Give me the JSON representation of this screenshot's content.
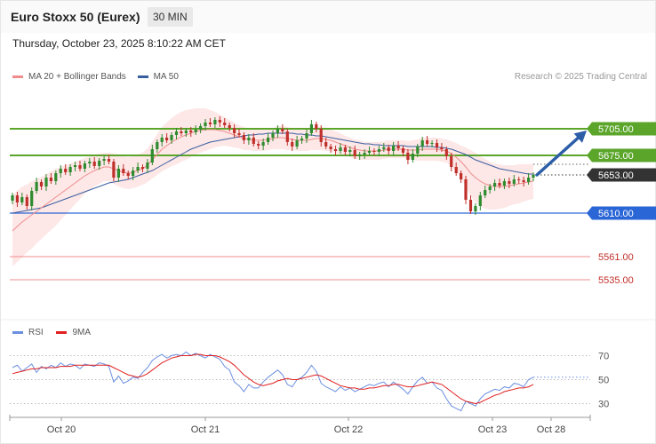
{
  "header": {
    "title": "Euro Stoxx 50 (Eurex)",
    "timeframe": "30 MIN",
    "datetime": "Thursday, October 23, 2025 8:10:22 AM CET"
  },
  "legend": {
    "ma20_label": "MA 20 + Bollinger Bands",
    "ma50_label": "MA 50",
    "copyright": "Research © 2025 Trading Central"
  },
  "rsi_legend": {
    "rsi_label": "RSI",
    "ma9_label": "9MA"
  },
  "colors": {
    "resistance": "#5aa52a",
    "support": "#2a66d6",
    "target_low": "#f08c8c",
    "current": "#333333",
    "ma20": "#f08c8c",
    "ma50": "#3a5fa0",
    "bollinger_fill": "#fde4e4",
    "arrow": "#2c5ea8",
    "candle_up": "#2e8b2e",
    "candle_down": "#c0302b",
    "rsi": "#6b8fe0",
    "rsi_ma": "#e02020"
  },
  "chart_data": [
    {
      "type": "candlestick",
      "ylim": [
        5520,
        5745
      ],
      "x_tick_labels": [
        "Oct 20",
        "Oct 21",
        "Oct 22",
        "Oct 23",
        "Oct 28"
      ],
      "series": [
        {
          "name": "MA 20 + Bollinger Bands"
        },
        {
          "name": "MA 50"
        }
      ],
      "levels": [
        {
          "value": 5705.0,
          "label": "5705.00",
          "kind": "resistance"
        },
        {
          "value": 5675.0,
          "label": "5675.00",
          "kind": "resistance"
        },
        {
          "value": 5653.0,
          "label": "5653.00",
          "kind": "current"
        },
        {
          "value": 5610.0,
          "label": "5610.00",
          "kind": "support"
        },
        {
          "value": 5561.0,
          "label": "5561.00",
          "kind": "target"
        },
        {
          "value": 5535.0,
          "label": "5535.00",
          "kind": "target"
        }
      ],
      "close": [
        5630,
        5622,
        5628,
        5618,
        5635,
        5645,
        5640,
        5650,
        5646,
        5655,
        5660,
        5656,
        5662,
        5664,
        5660,
        5666,
        5668,
        5663,
        5669,
        5671,
        5668,
        5650,
        5660,
        5655,
        5652,
        5658,
        5662,
        5660,
        5667,
        5682,
        5690,
        5695,
        5692,
        5698,
        5702,
        5700,
        5703,
        5701,
        5704,
        5708,
        5712,
        5710,
        5715,
        5712,
        5709,
        5706,
        5700,
        5698,
        5692,
        5695,
        5688,
        5686,
        5690,
        5695,
        5700,
        5705,
        5702,
        5690,
        5685,
        5692,
        5694,
        5700,
        5710,
        5705,
        5690,
        5685,
        5682,
        5680,
        5684,
        5679,
        5681,
        5674,
        5676,
        5678,
        5680,
        5679,
        5682,
        5684,
        5680,
        5686,
        5683,
        5678,
        5670,
        5677,
        5685,
        5692,
        5688,
        5689,
        5684,
        5682,
        5674,
        5662,
        5655,
        5648,
        5625,
        5612,
        5618,
        5630,
        5636,
        5640,
        5644,
        5641,
        5646,
        5643,
        5648,
        5647,
        5645,
        5650,
        5653
      ],
      "ma20": [
        5590,
        5595,
        5600,
        5604,
        5608,
        5612,
        5616,
        5620,
        5624,
        5628,
        5632,
        5636,
        5640,
        5644,
        5648,
        5652,
        5655,
        5658,
        5660,
        5662,
        5662,
        5660,
        5658,
        5656,
        5655,
        5656,
        5658,
        5660,
        5664,
        5670,
        5676,
        5682,
        5686,
        5690,
        5693,
        5696,
        5698,
        5700,
        5702,
        5703,
        5704,
        5704,
        5704,
        5703,
        5702,
        5700,
        5698,
        5696,
        5694,
        5693,
        5692,
        5692,
        5692,
        5693,
        5694,
        5695,
        5695,
        5694,
        5693,
        5692,
        5692,
        5692,
        5693,
        5694,
        5694,
        5693,
        5692,
        5690,
        5688,
        5686,
        5684,
        5682,
        5681,
        5680,
        5680,
        5680,
        5680,
        5681,
        5682,
        5682,
        5682,
        5682,
        5681,
        5681,
        5681,
        5682,
        5682,
        5682,
        5682,
        5681,
        5680,
        5677,
        5673,
        5668,
        5662,
        5655,
        5650,
        5646,
        5643,
        5641,
        5640,
        5640,
        5640,
        5641,
        5642,
        5643,
        5644,
        5645,
        5646
      ],
      "ma50": [
        5610,
        5611,
        5612,
        5613,
        5614,
        5615,
        5616,
        5618,
        5620,
        5622,
        5624,
        5626,
        5628,
        5630,
        5632,
        5634,
        5636,
        5638,
        5640,
        5642,
        5644,
        5645,
        5646,
        5647,
        5648,
        5650,
        5652,
        5654,
        5656,
        5658,
        5661,
        5664,
        5667,
        5670,
        5673,
        5676,
        5679,
        5682,
        5684,
        5686,
        5688,
        5690,
        5691,
        5692,
        5693,
        5694,
        5695,
        5696,
        5697,
        5698,
        5698,
        5699,
        5699,
        5700,
        5700,
        5700,
        5700,
        5700,
        5700,
        5699,
        5699,
        5698,
        5698,
        5697,
        5697,
        5696,
        5695,
        5694,
        5693,
        5692,
        5691,
        5690,
        5689,
        5688,
        5688,
        5687,
        5687,
        5686,
        5686,
        5686,
        5686,
        5686,
        5685,
        5685,
        5685,
        5685,
        5685,
        5685,
        5684,
        5684,
        5683,
        5682,
        5680,
        5678,
        5676,
        5673,
        5670,
        5668,
        5666,
        5664,
        5662,
        5660,
        5659,
        5658,
        5657,
        5656,
        5655,
        5654,
        5654
      ],
      "boll_width": [
        40,
        40,
        40,
        38,
        38,
        36,
        35,
        34,
        33,
        32,
        30,
        28,
        26,
        24,
        22,
        20,
        19,
        18,
        17,
        16,
        16,
        17,
        18,
        18,
        18,
        18,
        18,
        18,
        19,
        21,
        23,
        25,
        26,
        27,
        28,
        28,
        28,
        27,
        26,
        25,
        24,
        22,
        20,
        18,
        16,
        15,
        14,
        13,
        13,
        12,
        12,
        12,
        12,
        12,
        12,
        13,
        13,
        13,
        12,
        12,
        12,
        12,
        12,
        13,
        13,
        13,
        12,
        12,
        12,
        11,
        11,
        11,
        11,
        10,
        10,
        10,
        10,
        10,
        10,
        10,
        10,
        10,
        10,
        11,
        12,
        13,
        13,
        13,
        13,
        13,
        13,
        14,
        16,
        18,
        22,
        26,
        28,
        28,
        28,
        27,
        26,
        25,
        24,
        23,
        22,
        22,
        21,
        20,
        20
      ],
      "forecast": {
        "from": 5653.0,
        "to": 5705.0
      }
    },
    {
      "type": "line",
      "ylim": [
        20,
        80
      ],
      "y_tick_labels": [
        "70",
        "50",
        "30"
      ],
      "y_tick_values": [
        70,
        50,
        30
      ],
      "series": [
        {
          "name": "RSI",
          "values": [
            60,
            62,
            57,
            60,
            63,
            56,
            61,
            59,
            62,
            60,
            64,
            61,
            63,
            62,
            59,
            63,
            62,
            61,
            64,
            63,
            61,
            48,
            53,
            47,
            49,
            52,
            51,
            56,
            60,
            66,
            69,
            71,
            68,
            70,
            71,
            70,
            73,
            70,
            72,
            70,
            68,
            71,
            69,
            67,
            61,
            58,
            48,
            45,
            40,
            46,
            43,
            43,
            48,
            52,
            55,
            58,
            54,
            46,
            44,
            50,
            52,
            56,
            62,
            57,
            47,
            44,
            42,
            40,
            44,
            41,
            43,
            40,
            42,
            44,
            46,
            45,
            47,
            48,
            44,
            48,
            45,
            42,
            38,
            44,
            49,
            52,
            47,
            48,
            43,
            41,
            34,
            28,
            26,
            24,
            32,
            30,
            28,
            34,
            38,
            40,
            42,
            41,
            44,
            43,
            47,
            46,
            44,
            50,
            52
          ]
        },
        {
          "name": "9MA",
          "values": [
            55,
            56,
            57,
            58,
            59,
            59,
            60,
            60,
            60,
            60,
            61,
            61,
            61,
            62,
            62,
            62,
            62,
            62,
            62,
            62,
            62,
            60,
            58,
            56,
            54,
            53,
            52,
            53,
            55,
            58,
            61,
            64,
            66,
            68,
            69,
            70,
            70,
            70,
            71,
            71,
            70,
            70,
            70,
            69,
            67,
            65,
            62,
            58,
            54,
            51,
            48,
            46,
            45,
            46,
            47,
            49,
            50,
            51,
            50,
            50,
            51,
            52,
            53,
            54,
            53,
            51,
            49,
            47,
            45,
            44,
            43,
            43,
            42,
            42,
            43,
            43,
            44,
            45,
            45,
            46,
            46,
            45,
            44,
            44,
            45,
            46,
            47,
            48,
            47,
            46,
            43,
            40,
            37,
            34,
            32,
            31,
            30,
            31,
            33,
            35,
            37,
            38,
            40,
            41,
            42,
            43,
            43,
            44,
            46
          ]
        }
      ]
    }
  ]
}
